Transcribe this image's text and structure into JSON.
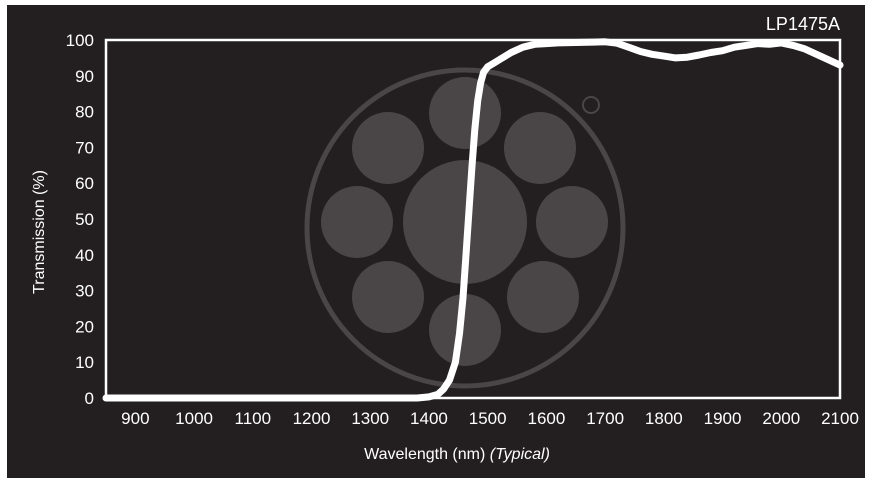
{
  "chart_data": {
    "type": "line",
    "title": "LP1475A",
    "xlabel": "Wavelength (nm)",
    "xlabel_suffix": "(Typical)",
    "ylabel": "Transmission (%)",
    "xlim": [
      850,
      2100
    ],
    "ylim": [
      0,
      100
    ],
    "x_ticks": [
      900,
      1000,
      1100,
      1200,
      1300,
      1400,
      1500,
      1600,
      1700,
      1800,
      1900,
      2000,
      2100
    ],
    "y_ticks": [
      0,
      10,
      20,
      30,
      40,
      50,
      60,
      70,
      80,
      90,
      100
    ],
    "grid": false,
    "colors": {
      "background": "#231f20",
      "line": "#ffffff",
      "watermark": "#4a4647"
    },
    "series": [
      {
        "x": [
          850,
          1000,
          1200,
          1380,
          1400,
          1415,
          1425,
          1435,
          1445,
          1452,
          1458,
          1463,
          1468,
          1473,
          1478,
          1483,
          1488,
          1493,
          1500,
          1510,
          1520,
          1540,
          1560,
          1580,
          1600,
          1620,
          1650,
          1680,
          1700,
          1720,
          1740,
          1760,
          1780,
          1800,
          1820,
          1840,
          1860,
          1880,
          1900,
          1920,
          1940,
          1960,
          1980,
          2000,
          2020,
          2040,
          2060,
          2080,
          2100
        ],
        "y": [
          0,
          0,
          0,
          0,
          0.3,
          1,
          2.5,
          5,
          10,
          18,
          28,
          40,
          52,
          64,
          75,
          83,
          88,
          91,
          92.5,
          93.5,
          94.5,
          96.5,
          98,
          98.8,
          99,
          99.2,
          99.3,
          99.4,
          99.5,
          99.1,
          98,
          96.8,
          96,
          95.5,
          95,
          95.2,
          95.8,
          96.5,
          97,
          98,
          98.5,
          99,
          98.8,
          99.2,
          98.5,
          97.5,
          96,
          94.5,
          93
        ]
      }
    ]
  }
}
